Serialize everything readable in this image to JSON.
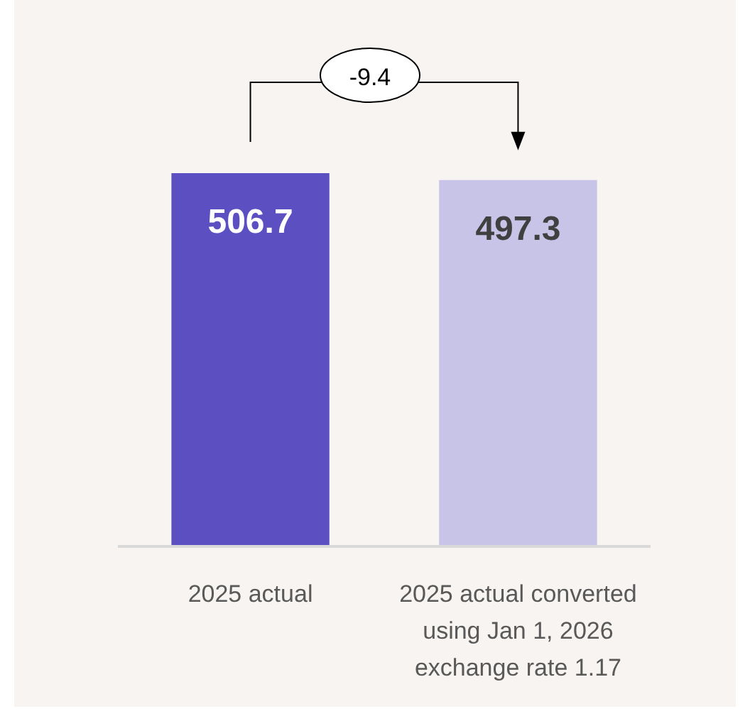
{
  "chart_data": {
    "type": "bar",
    "categories": [
      "2025 actual",
      "2025 actual converted using Jan 1, 2026 exchange rate 1.17"
    ],
    "values": [
      506.7,
      497.3
    ],
    "colors": [
      "#5b4fc2",
      "#c8c4e8"
    ],
    "data_labels": true,
    "annotations": [
      "-9.4"
    ]
  }
}
